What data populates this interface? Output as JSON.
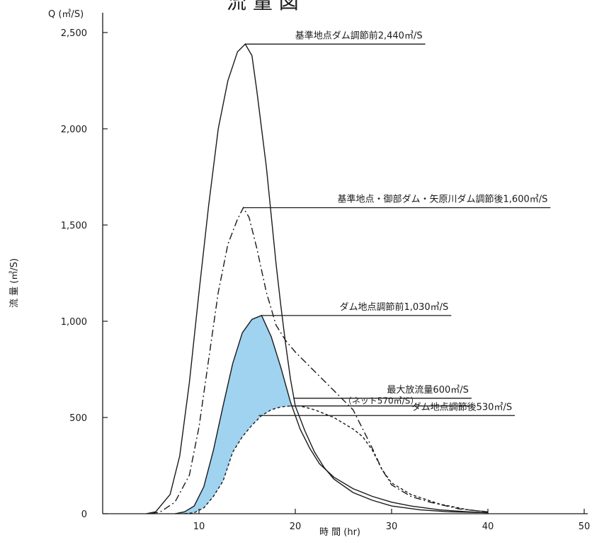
{
  "chart_data": {
    "type": "line",
    "title": "流 量 図",
    "xlabel": "時 間 (hr)",
    "ylabel": "流 量 (㎥/S)",
    "yunit": "Q (㎥/S)",
    "xlim": [
      0,
      52
    ],
    "ylim": [
      0,
      2500
    ],
    "x_ticks": [
      10,
      20,
      30,
      40,
      50
    ],
    "x_tick_labels": [
      "10",
      "20",
      "30",
      "40",
      "50"
    ],
    "y_ticks": [
      0,
      500,
      1000,
      1500,
      2000,
      2500
    ],
    "y_tick_labels": [
      "0",
      "500",
      "1,000",
      "1,500",
      "2,000",
      "2,500"
    ],
    "grid": false,
    "shaded_region": {
      "between": [
        "dam_before",
        "dam_after"
      ],
      "color": "#9fd3f0"
    },
    "series": [
      {
        "id": "kijun_before",
        "style": "solid",
        "x": [
          4.5,
          5.5,
          7,
          8,
          9,
          10,
          11,
          12,
          13,
          14,
          14.8,
          15.5,
          16,
          16.5,
          17,
          17.5,
          18,
          18.5,
          19,
          19.5,
          20,
          21,
          22,
          23,
          24,
          26,
          28,
          30,
          33,
          36,
          40
        ],
        "y": [
          0,
          10,
          100,
          300,
          680,
          1150,
          1600,
          2000,
          2250,
          2400,
          2440,
          2380,
          2200,
          2000,
          1800,
          1550,
          1300,
          1080,
          880,
          700,
          560,
          430,
          320,
          240,
          180,
          110,
          70,
          40,
          20,
          10,
          5
        ]
      },
      {
        "id": "kijun_after",
        "style": "dashdot",
        "x": [
          5,
          6,
          7.5,
          9,
          10,
          11,
          12,
          13,
          14,
          14.6,
          15.2,
          16,
          17,
          18,
          19,
          20,
          22,
          24,
          26,
          27,
          28,
          29,
          30,
          32,
          34,
          37,
          40
        ],
        "y": [
          0,
          10,
          60,
          200,
          450,
          800,
          1150,
          1400,
          1530,
          1590,
          1540,
          1380,
          1150,
          980,
          900,
          840,
          740,
          640,
          540,
          440,
          340,
          230,
          150,
          90,
          60,
          25,
          10
        ]
      },
      {
        "id": "dam_before",
        "style": "solid",
        "x": [
          7.5,
          8.5,
          9.5,
          10.5,
          11.5,
          12.5,
          13.5,
          14.5,
          15.5,
          16.5,
          17.5,
          18.5,
          19.5,
          20.5,
          21.5,
          22.5,
          24,
          26,
          28,
          30,
          32,
          35,
          38,
          40
        ],
        "y": [
          0,
          10,
          40,
          140,
          330,
          560,
          780,
          940,
          1010,
          1030,
          920,
          760,
          580,
          440,
          340,
          260,
          190,
          130,
          90,
          60,
          40,
          20,
          10,
          5
        ]
      },
      {
        "id": "dam_after",
        "style": "dashed",
        "x": [
          8.5,
          9.5,
          10.5,
          11.5,
          12.5,
          13.5,
          14.5,
          15.5,
          16.5,
          17.5,
          18.5,
          19.5,
          20.5,
          22,
          24,
          26,
          27,
          28,
          29,
          30,
          32,
          35,
          38,
          40
        ],
        "y": [
          0,
          5,
          30,
          90,
          170,
          320,
          400,
          460,
          510,
          540,
          555,
          560,
          560,
          540,
          500,
          440,
          400,
          330,
          230,
          160,
          100,
          50,
          20,
          10
        ]
      }
    ],
    "annotations": [
      {
        "text": "基準地点ダム調節前2,440㎥/S",
        "x": 14.8,
        "y": 2440,
        "line_to": 33.5
      },
      {
        "text": "基準地点・御部ダム・矢原川ダム調節後1,600㎥/S",
        "x": 14.6,
        "y": 1590,
        "line_to": 46.5
      },
      {
        "text": "ダム地点調節前1,030㎥/S",
        "x": 16.5,
        "y": 1030,
        "line_to": 36.2
      },
      {
        "text": "最大放流量600㎥/S",
        "x": 19.8,
        "y": 600,
        "line_to": 38.3
      },
      {
        "text": "（ネット570㎥/S）",
        "x": 19.5,
        "y": 560,
        "line_to": 38.3
      },
      {
        "text": "ダム地点調節後530㎥/S",
        "x": 16.2,
        "y": 510,
        "line_to": 42.8
      }
    ]
  }
}
